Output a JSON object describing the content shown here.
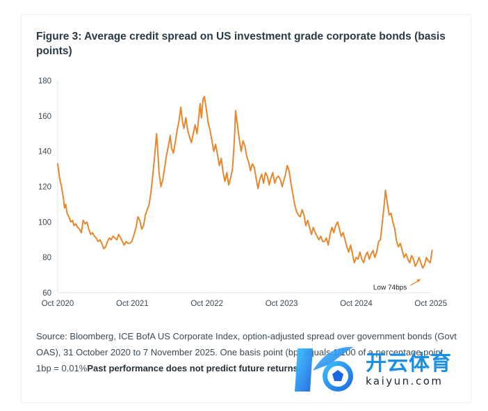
{
  "figure": {
    "title": "Figure 3: Average credit spread on US investment grade corporate bonds (basis points)",
    "source_text": "Source: Bloomberg, ICE BofA US Corporate Index, option-adjusted spread over government bonds (Govt OAS), 31 October 2020 to 7 November 2025. One basis point (bp) equals 1/100 of a percentage point, 1bp = 0.01%",
    "disclaimer": "Past performance does not predict future returns."
  },
  "watermark": {
    "cn": "开云体育",
    "en": "kaiyun.com"
  },
  "colors": {
    "line": "#e8862c",
    "axis_text": "#3d4852",
    "grid": "#e6e6e6"
  },
  "chart_data": {
    "type": "line",
    "title": "Average credit spread on US investment grade corporate bonds (basis points)",
    "xlabel": "",
    "ylabel": "",
    "ylim": [
      60,
      180
    ],
    "yticks": [
      60,
      80,
      100,
      120,
      140,
      160,
      180
    ],
    "xlim": [
      0,
      60.25
    ],
    "xticks": [
      {
        "x": 0,
        "label": "Oct 2020"
      },
      {
        "x": 12,
        "label": "Oct 2021"
      },
      {
        "x": 24,
        "label": "Oct 2022"
      },
      {
        "x": 36,
        "label": "Oct 2023"
      },
      {
        "x": 48,
        "label": "Oct 2024"
      },
      {
        "x": 60,
        "label": "Oct 2025"
      }
    ],
    "x_unit": "months since Oct 2020",
    "annotation": {
      "text": "Low 74bps",
      "x": 58.6,
      "y": 74
    },
    "series": [
      {
        "name": "Govt OAS",
        "points": [
          [
            0,
            133
          ],
          [
            0.3,
            125
          ],
          [
            0.6,
            120
          ],
          [
            0.9,
            114
          ],
          [
            1.1,
            108
          ],
          [
            1.3,
            110
          ],
          [
            1.5,
            105
          ],
          [
            1.8,
            103
          ],
          [
            2.1,
            100
          ],
          [
            2.4,
            101
          ],
          [
            2.6,
            98
          ],
          [
            2.9,
            99
          ],
          [
            3.2,
            97
          ],
          [
            3.5,
            96
          ],
          [
            3.8,
            94
          ],
          [
            4.1,
            101
          ],
          [
            4.4,
            99
          ],
          [
            4.7,
            100
          ],
          [
            5,
            96
          ],
          [
            5.3,
            93
          ],
          [
            5.6,
            94
          ],
          [
            5.9,
            92
          ],
          [
            6.2,
            91
          ],
          [
            6.5,
            89
          ],
          [
            6.8,
            90
          ],
          [
            7.1,
            88
          ],
          [
            7.4,
            85
          ],
          [
            7.7,
            86
          ],
          [
            8,
            89
          ],
          [
            8.3,
            91
          ],
          [
            8.6,
            90
          ],
          [
            8.9,
            92
          ],
          [
            9.2,
            91
          ],
          [
            9.5,
            90
          ],
          [
            9.8,
            93
          ],
          [
            10.1,
            91
          ],
          [
            10.4,
            89
          ],
          [
            10.7,
            87
          ],
          [
            11,
            89
          ],
          [
            11.3,
            88
          ],
          [
            11.6,
            88
          ],
          [
            11.9,
            89
          ],
          [
            12.2,
            92
          ],
          [
            12.6,
            97
          ],
          [
            12.9,
            103
          ],
          [
            13.2,
            101
          ],
          [
            13.5,
            96
          ],
          [
            13.8,
            98
          ],
          [
            14.1,
            104
          ],
          [
            14.4,
            107
          ],
          [
            14.7,
            110
          ],
          [
            15,
            117
          ],
          [
            15.3,
            127
          ],
          [
            15.6,
            138
          ],
          [
            15.9,
            150
          ],
          [
            16.1,
            140
          ],
          [
            16.3,
            128
          ],
          [
            16.6,
            120
          ],
          [
            16.9,
            124
          ],
          [
            17.2,
            131
          ],
          [
            17.5,
            138
          ],
          [
            17.8,
            143
          ],
          [
            18.1,
            149
          ],
          [
            18.3,
            142
          ],
          [
            18.6,
            139
          ],
          [
            18.9,
            145
          ],
          [
            19.2,
            152
          ],
          [
            19.5,
            157
          ],
          [
            19.8,
            165
          ],
          [
            20.1,
            156
          ],
          [
            20.3,
            153
          ],
          [
            20.6,
            159
          ],
          [
            20.9,
            152
          ],
          [
            21.2,
            148
          ],
          [
            21.5,
            145
          ],
          [
            21.8,
            150
          ],
          [
            22.1,
            155
          ],
          [
            22.4,
            150
          ],
          [
            22.7,
            160
          ],
          [
            22.9,
            167
          ],
          [
            23.1,
            159
          ],
          [
            23.4,
            170
          ],
          [
            23.6,
            171
          ],
          [
            23.9,
            164
          ],
          [
            24.2,
            156
          ],
          [
            24.5,
            152
          ],
          [
            24.8,
            146
          ],
          [
            25.1,
            140
          ],
          [
            25.4,
            144
          ],
          [
            25.7,
            138
          ],
          [
            26,
            132
          ],
          [
            26.3,
            136
          ],
          [
            26.6,
            128
          ],
          [
            26.9,
            123
          ],
          [
            27.2,
            128
          ],
          [
            27.5,
            121
          ],
          [
            27.8,
            125
          ],
          [
            28.1,
            130
          ],
          [
            28.4,
            146
          ],
          [
            28.6,
            163
          ],
          [
            28.9,
            155
          ],
          [
            29.2,
            147
          ],
          [
            29.5,
            140
          ],
          [
            29.8,
            146
          ],
          [
            30.1,
            143
          ],
          [
            30.4,
            137
          ],
          [
            30.7,
            134
          ],
          [
            31,
            129
          ],
          [
            31.3,
            133
          ],
          [
            31.6,
            131
          ],
          [
            31.9,
            125
          ],
          [
            32.2,
            119
          ],
          [
            32.5,
            124
          ],
          [
            32.8,
            127
          ],
          [
            33.1,
            122
          ],
          [
            33.4,
            128
          ],
          [
            33.7,
            126
          ],
          [
            34,
            121
          ],
          [
            34.3,
            125
          ],
          [
            34.6,
            128
          ],
          [
            34.9,
            122
          ],
          [
            35.2,
            125
          ],
          [
            35.5,
            126
          ],
          [
            35.8,
            124
          ],
          [
            36.1,
            120
          ],
          [
            36.4,
            124
          ],
          [
            36.7,
            128
          ],
          [
            36.9,
            132
          ],
          [
            37.2,
            129
          ],
          [
            37.5,
            122
          ],
          [
            37.8,
            116
          ],
          [
            38.1,
            110
          ],
          [
            38.4,
            106
          ],
          [
            38.7,
            104
          ],
          [
            39,
            103
          ],
          [
            39.3,
            107
          ],
          [
            39.6,
            104
          ],
          [
            39.9,
            98
          ],
          [
            40.2,
            101
          ],
          [
            40.5,
            97
          ],
          [
            40.8,
            93
          ],
          [
            41.1,
            97
          ],
          [
            41.4,
            94
          ],
          [
            41.7,
            92
          ],
          [
            42,
            90
          ],
          [
            42.3,
            92
          ],
          [
            42.6,
            89
          ],
          [
            42.9,
            89
          ],
          [
            43.2,
            91
          ],
          [
            43.5,
            87
          ],
          [
            43.8,
            93
          ],
          [
            44.1,
            97
          ],
          [
            44.4,
            94
          ],
          [
            44.7,
            98
          ],
          [
            45,
            100
          ],
          [
            45.3,
            96
          ],
          [
            45.6,
            92
          ],
          [
            45.9,
            94
          ],
          [
            46.2,
            90
          ],
          [
            46.5,
            86
          ],
          [
            46.8,
            83
          ],
          [
            47.1,
            87
          ],
          [
            47.4,
            82
          ],
          [
            47.7,
            77
          ],
          [
            48,
            80
          ],
          [
            48.3,
            79
          ],
          [
            48.6,
            83
          ],
          [
            48.9,
            79
          ],
          [
            49.2,
            77
          ],
          [
            49.5,
            81
          ],
          [
            49.8,
            83
          ],
          [
            50.1,
            79
          ],
          [
            50.4,
            82
          ],
          [
            50.7,
            84
          ],
          [
            51,
            80
          ],
          [
            51.3,
            83
          ],
          [
            51.6,
            89
          ],
          [
            51.9,
            90
          ],
          [
            52.2,
            100
          ],
          [
            52.5,
            110
          ],
          [
            52.7,
            118
          ],
          [
            53,
            111
          ],
          [
            53.3,
            104
          ],
          [
            53.6,
            105
          ],
          [
            53.9,
            100
          ],
          [
            54.2,
            96
          ],
          [
            54.5,
            89
          ],
          [
            54.8,
            86
          ],
          [
            55.1,
            88
          ],
          [
            55.4,
            84
          ],
          [
            55.7,
            80
          ],
          [
            56,
            82
          ],
          [
            56.3,
            79
          ],
          [
            56.6,
            77
          ],
          [
            56.9,
            81
          ],
          [
            57.2,
            79
          ],
          [
            57.5,
            75
          ],
          [
            57.8,
            77
          ],
          [
            58.1,
            80
          ],
          [
            58.4,
            77
          ],
          [
            58.7,
            74
          ],
          [
            59,
            76
          ],
          [
            59.3,
            80
          ],
          [
            59.6,
            78
          ],
          [
            59.9,
            77
          ],
          [
            60.2,
            84
          ]
        ]
      }
    ]
  }
}
